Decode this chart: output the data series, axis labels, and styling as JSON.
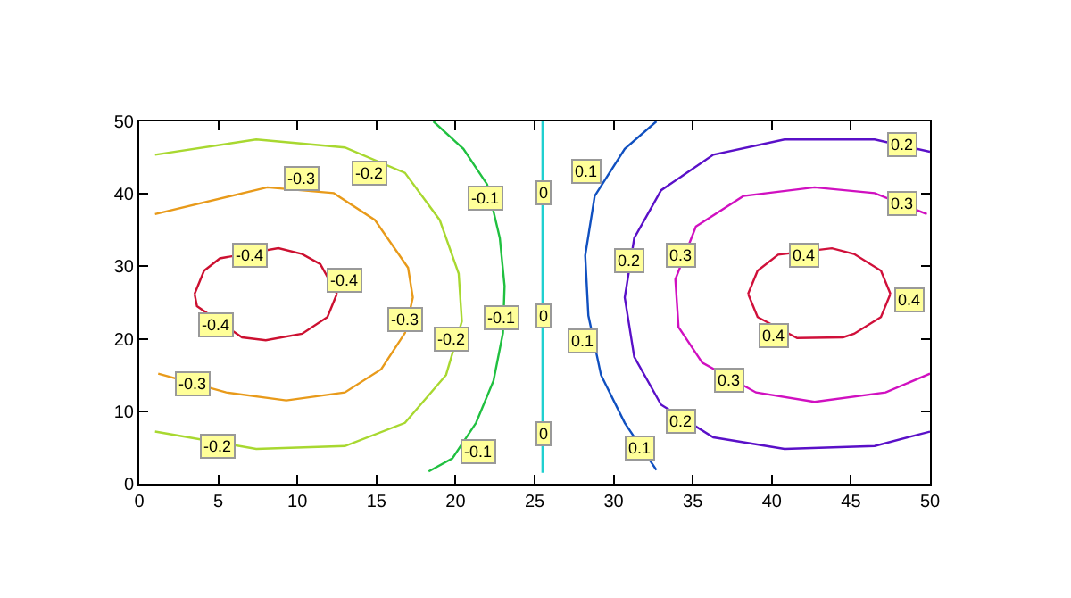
{
  "chart_data": {
    "type": "line",
    "xlim": [
      0,
      50
    ],
    "ylim": [
      0,
      50
    ],
    "xticks": [
      0,
      5,
      10,
      15,
      20,
      25,
      30,
      35,
      40,
      45,
      50
    ],
    "yticks": [
      0,
      10,
      20,
      30,
      40,
      50
    ],
    "grid": false,
    "marker": "none",
    "line_style": "solid",
    "series": [
      {
        "color": "#cc1030",
        "x": [
          3.5,
          4.1,
          5.1,
          8.8,
          10.3,
          11.45,
          12.5
        ],
        "values": [
          26.2,
          29.4,
          31.1,
          32.5,
          31.7,
          30.3,
          26.2
        ]
      },
      {
        "color": "#cc1030",
        "x": [
          3.5,
          3.65,
          6.5,
          8,
          10.3,
          11.9,
          12.5
        ],
        "values": [
          26.2,
          24.5,
          20.2,
          19.8,
          20.7,
          23.0,
          26.2
        ]
      },
      {
        "color": "#e89a1a",
        "x": [
          1.0,
          8.1,
          12.3,
          14.9,
          17.0,
          17.3,
          16.8,
          15.3,
          13.0,
          9.3,
          5.5,
          1.2
        ],
        "values": [
          37.2,
          40.9,
          40.1,
          36.4,
          29.8,
          25.7,
          20.8,
          15.8,
          12.6,
          11.5,
          12.6,
          15.2
        ]
      },
      {
        "color": "#a8d830",
        "x": [
          1.0,
          7.4,
          13.0,
          16.8,
          19.0,
          20.2,
          20.4,
          19.4,
          16.8,
          13.0,
          7.4,
          1.0
        ],
        "values": [
          45.4,
          47.5,
          46.4,
          42.9,
          36.4,
          29.0,
          22.4,
          15.0,
          8.4,
          5.2,
          4.8,
          7.2
        ]
      },
      {
        "color": "#20c040",
        "x": [
          18.6,
          20.5,
          22.0,
          22.8,
          23.1,
          23.0,
          22.4,
          21.3,
          19.8,
          18.3
        ],
        "values": [
          50,
          46.2,
          41.3,
          33.9,
          27.3,
          20.8,
          14.2,
          8.4,
          3.5,
          1.7
        ]
      },
      {
        "color": "#20d0d0",
        "x": [
          25.5,
          25.5
        ],
        "values": [
          50,
          1.5
        ]
      },
      {
        "color": "#1050c0",
        "x": [
          32.7,
          30.7,
          28.8,
          28.2,
          28.4,
          29.2,
          30.7,
          32.7
        ],
        "values": [
          50,
          46.2,
          39.7,
          31.5,
          23.2,
          15.0,
          8.4,
          1.9
        ]
      },
      {
        "color": "#5a10c8",
        "x": [
          50,
          46.5,
          40.8,
          36.3,
          33.0,
          31.3,
          30.7,
          31.3,
          33.0,
          36.3,
          40.8,
          46.5,
          50
        ],
        "values": [
          45.8,
          47.5,
          47.5,
          45.4,
          40.5,
          33.9,
          25.7,
          17.5,
          10.9,
          6.4,
          4.8,
          5.2,
          7.2
        ]
      },
      {
        "color": "#d010c0",
        "x": [
          49.8,
          46.5,
          42.7,
          38.2,
          35.2,
          33.9,
          34.1,
          35.6,
          39.0,
          42.7,
          47.2,
          50
        ],
        "values": [
          37.2,
          40.1,
          40.9,
          39.7,
          35.5,
          28.2,
          21.6,
          16.7,
          12.6,
          11.3,
          12.6,
          15.2
        ]
      },
      {
        "color": "#d0103a",
        "x": [
          38.5,
          39.1,
          40.4,
          43.8,
          45.2,
          46.9,
          47.5
        ],
        "values": [
          26.2,
          29.4,
          31.6,
          32.5,
          31.7,
          29.4,
          26.2
        ]
      },
      {
        "color": "#d0103a",
        "x": [
          38.5,
          39.1,
          41.6,
          44.5,
          45.2,
          46.9,
          47.5
        ],
        "values": [
          26.2,
          23.0,
          20.1,
          20.2,
          20.7,
          23.0,
          26.2
        ]
      }
    ],
    "annotations": [
      {
        "text": "-0.4",
        "x": 7.0,
        "y": 31.5
      },
      {
        "text": "-0.4",
        "x": 13.0,
        "y": 28.1
      },
      {
        "text": "-0.4",
        "x": 4.8,
        "y": 21.8
      },
      {
        "text": "-0.3",
        "x": 10.3,
        "y": 42.0
      },
      {
        "text": "-0.3",
        "x": 16.8,
        "y": 22.7
      },
      {
        "text": "-0.3",
        "x": 3.4,
        "y": 13.8
      },
      {
        "text": "-0.2",
        "x": 14.6,
        "y": 42.9
      },
      {
        "text": "-0.2",
        "x": 19.8,
        "y": 20.0
      },
      {
        "text": "-0.2",
        "x": 5.0,
        "y": 5.2
      },
      {
        "text": "-0.1",
        "x": 21.9,
        "y": 39.4
      },
      {
        "text": "-0.1",
        "x": 22.9,
        "y": 22.9
      },
      {
        "text": "-0.1",
        "x": 21.5,
        "y": 4.5
      },
      {
        "text": "0",
        "x": 25.6,
        "y": 40.1
      },
      {
        "text": "0",
        "x": 25.6,
        "y": 23.2
      },
      {
        "text": "0",
        "x": 25.6,
        "y": 6.9
      },
      {
        "text": "0.1",
        "x": 28.3,
        "y": 43.0
      },
      {
        "text": "0.1",
        "x": 28.1,
        "y": 19.8
      },
      {
        "text": "0.1",
        "x": 31.7,
        "y": 4.9
      },
      {
        "text": "0.2",
        "x": 31.0,
        "y": 30.7
      },
      {
        "text": "0.2",
        "x": 34.3,
        "y": 8.6
      },
      {
        "text": "0.2",
        "x": 48.3,
        "y": 46.8
      },
      {
        "text": "0.3",
        "x": 34.3,
        "y": 31.5
      },
      {
        "text": "0.3",
        "x": 37.3,
        "y": 14.2
      },
      {
        "text": "0.3",
        "x": 48.3,
        "y": 38.6
      },
      {
        "text": "0.4",
        "x": 42.0,
        "y": 31.5
      },
      {
        "text": "0.4",
        "x": 40.1,
        "y": 20.4
      },
      {
        "text": "0.4",
        "x": 48.7,
        "y": 25.3
      }
    ]
  }
}
